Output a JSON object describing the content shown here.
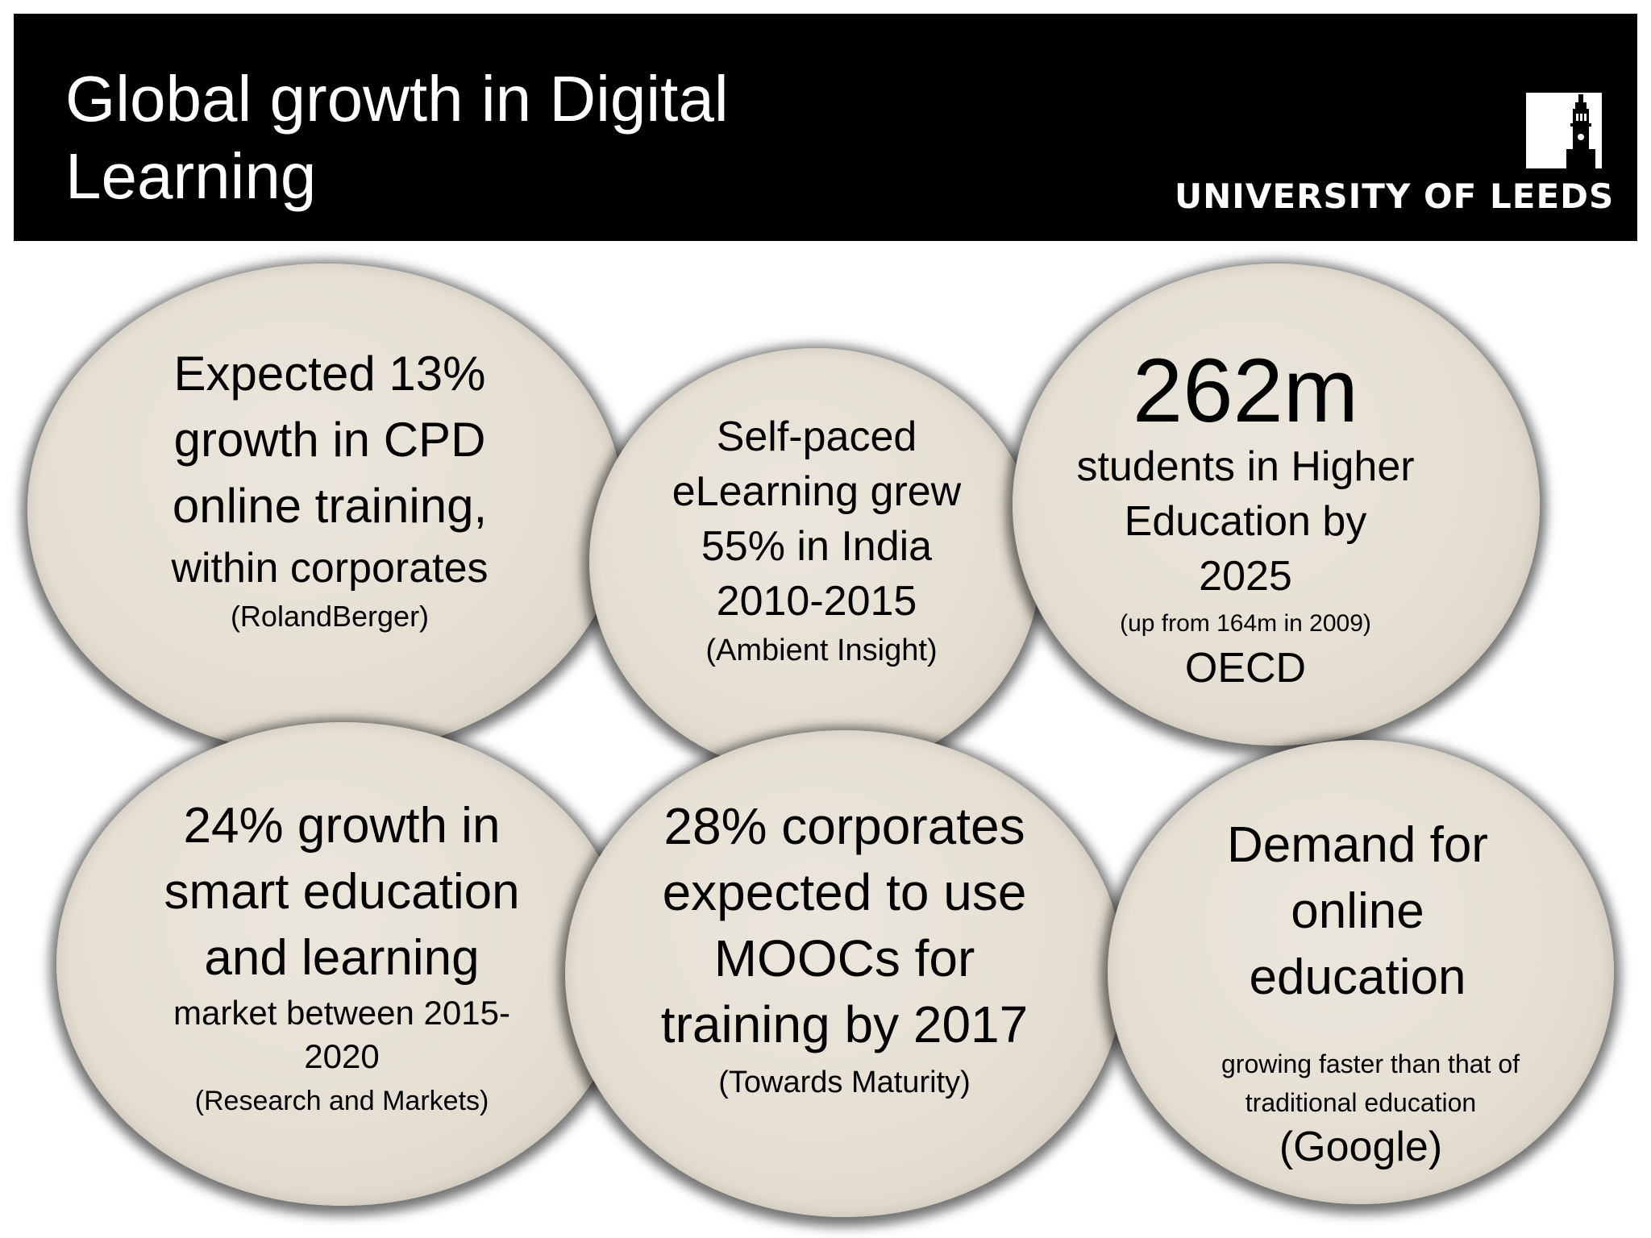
{
  "header": {
    "title_line1": "Global growth in Digital",
    "title_line2": "Learning",
    "logo_text": "UNIVERSITY OF LEEDS",
    "logo_icon": "parkinson-tower-icon"
  },
  "stats": {
    "cpd": {
      "line1": "Expected 13%",
      "line2": "growth in CPD",
      "line3": "online training,",
      "line4": "within corporates",
      "source": "(RolandBerger)"
    },
    "india": {
      "line1": "Self-paced",
      "line2": "eLearning grew",
      "line3": "55% in India",
      "line4": "2010-2015",
      "source": "(Ambient Insight)"
    },
    "higher_ed": {
      "figure": "262m",
      "line1": "students in Higher",
      "line2": "Education by",
      "line3": "2025",
      "note": "(up from 164m in 2009)",
      "source": "OECD"
    },
    "smart_ed": {
      "line1": "24% growth in",
      "line2": "smart education",
      "line3": "and learning",
      "line4": "market between 2015-",
      "line5": "2020",
      "source": "(Research and Markets)"
    },
    "moocs": {
      "line1": "28% corporates",
      "line2": "expected to use",
      "line3": "MOOCs for",
      "line4": "training by 2017",
      "source": "(Towards Maturity)"
    },
    "online_demand": {
      "line1": "Demand for",
      "line2": "online",
      "line3": "education",
      "line4": "growing faster than that of",
      "line5": "traditional education",
      "source": "(Google)"
    }
  },
  "colors": {
    "header_bg": "#000000",
    "bubble_fill": "#e5dfd3",
    "text": "#000000"
  }
}
